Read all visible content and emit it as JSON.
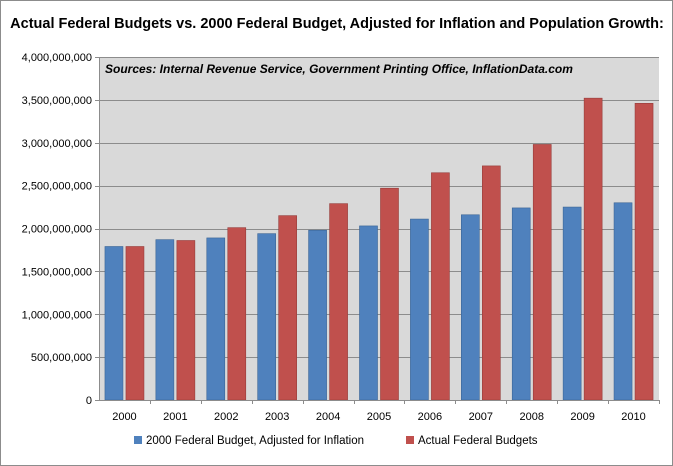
{
  "chart_data": {
    "type": "bar",
    "title": "Actual Federal Budgets vs. 2000 Federal Budget, Adjusted for Inflation and Population Growth:",
    "annotation": "Sources:  Internal Revenue Service, Government Printing Office, InflationData.com",
    "xlabel": "",
    "ylabel": "",
    "ylim": [
      0,
      4000000000
    ],
    "y_ticks": [
      0,
      500000000,
      1000000000,
      1500000000,
      2000000000,
      2500000000,
      3000000000,
      3500000000,
      4000000000
    ],
    "y_tick_labels": [
      "0",
      "500,000,000",
      "1,000,000,000",
      "1,500,000,000",
      "2,000,000,000",
      "2,500,000,000",
      "3,000,000,000",
      "3,500,000,000",
      "4,000,000,000"
    ],
    "grid": true,
    "legend_position": "bottom",
    "categories": [
      "2000",
      "2001",
      "2002",
      "2003",
      "2004",
      "2005",
      "2006",
      "2007",
      "2008",
      "2009",
      "2010"
    ],
    "series": [
      {
        "name": "2000 Federal Budget, Adjusted for Inflation",
        "color": "#4f81bd",
        "values": [
          1790000000,
          1870000000,
          1890000000,
          1940000000,
          1980000000,
          2030000000,
          2110000000,
          2160000000,
          2240000000,
          2250000000,
          2300000000
        ]
      },
      {
        "name": "Actual Federal Budgets",
        "color": "#c0504d",
        "values": [
          1790000000,
          1860000000,
          2010000000,
          2150000000,
          2290000000,
          2470000000,
          2650000000,
          2730000000,
          2980000000,
          3520000000,
          3460000000
        ]
      }
    ],
    "plot_background": "#d9d9d9",
    "gridline_color": "#8c8c8c"
  }
}
